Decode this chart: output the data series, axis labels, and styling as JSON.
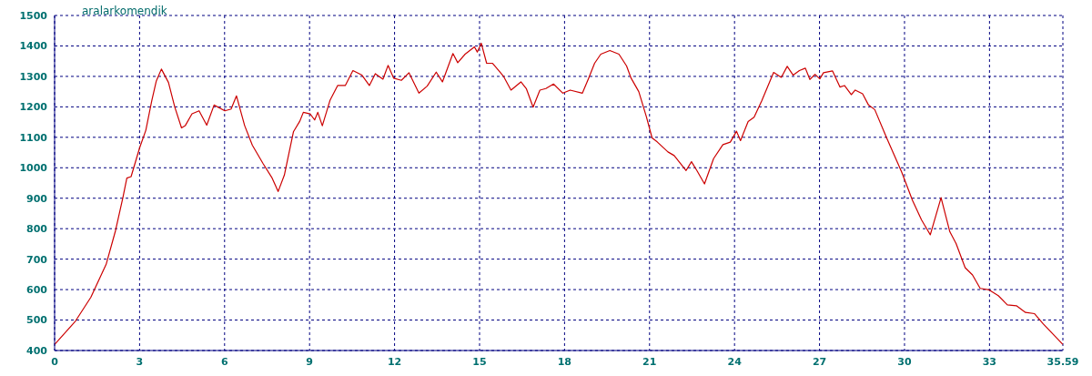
{
  "chart_data": {
    "type": "line",
    "title": "aralarkomendik",
    "x": [
      0,
      0.74,
      1.28,
      1.82,
      2.14,
      2.41,
      2.55,
      2.7,
      3.0,
      3.22,
      3.43,
      3.59,
      3.77,
      4.02,
      4.24,
      4.48,
      4.61,
      4.85,
      5.1,
      5.37,
      5.63,
      6.01,
      6.23,
      6.42,
      6.71,
      6.98,
      7.35,
      7.68,
      7.89,
      8.11,
      8.43,
      8.65,
      8.78,
      9.02,
      9.18,
      9.29,
      9.45,
      9.72,
      9.99,
      10.26,
      10.53,
      10.85,
      11.11,
      11.32,
      11.59,
      11.77,
      11.97,
      12.24,
      12.51,
      12.86,
      13.15,
      13.47,
      13.69,
      14.06,
      14.23,
      14.49,
      14.82,
      14.92,
      15.06,
      15.25,
      15.46,
      15.68,
      15.84,
      16.11,
      16.46,
      16.65,
      16.89,
      17.13,
      17.34,
      17.61,
      17.94,
      18.2,
      18.63,
      18.85,
      19.06,
      19.28,
      19.6,
      19.92,
      20.19,
      20.35,
      20.62,
      20.89,
      21.09,
      21.27,
      21.65,
      21.87,
      22.29,
      22.48,
      22.67,
      22.94,
      23.26,
      23.59,
      23.85,
      24.07,
      24.21,
      24.48,
      24.69,
      24.96,
      25.38,
      25.65,
      25.86,
      26.07,
      26.29,
      26.5,
      26.66,
      26.84,
      27.01,
      27.14,
      27.46,
      27.72,
      27.88,
      28.12,
      28.26,
      28.52,
      28.73,
      28.95,
      29.37,
      29.9,
      30.28,
      30.6,
      30.91,
      31.29,
      31.6,
      31.82,
      32.14,
      32.4,
      32.67,
      32.99,
      33.31,
      33.63,
      33.95,
      34.27,
      34.59,
      34.9,
      35.59
    ],
    "series": [
      {
        "color": "#cc0000",
        "values": [
          420,
          497,
          575,
          683,
          790,
          902,
          966,
          971,
          1065,
          1123,
          1220,
          1285,
          1324,
          1280,
          1200,
          1131,
          1138,
          1177,
          1187,
          1140,
          1206,
          1187,
          1193,
          1236,
          1138,
          1074,
          1015,
          966,
          922,
          976,
          1118,
          1152,
          1182,
          1177,
          1157,
          1182,
          1138,
          1221,
          1270,
          1270,
          1319,
          1304,
          1270,
          1309,
          1291,
          1336,
          1294,
          1287,
          1312,
          1245,
          1268,
          1314,
          1282,
          1375,
          1345,
          1373,
          1397,
          1380,
          1409,
          1343,
          1343,
          1319,
          1301,
          1255,
          1282,
          1260,
          1199,
          1255,
          1260,
          1275,
          1245,
          1255,
          1245,
          1294,
          1343,
          1373,
          1385,
          1373,
          1334,
          1294,
          1250,
          1167,
          1098,
          1085,
          1052,
          1040,
          991,
          1020,
          991,
          947,
          1030,
          1076,
          1084,
          1120,
          1089,
          1152,
          1166,
          1220,
          1313,
          1297,
          1333,
          1304,
          1319,
          1327,
          1290,
          1307,
          1292,
          1312,
          1318,
          1265,
          1270,
          1240,
          1255,
          1243,
          1206,
          1191,
          1098,
          986,
          893,
          829,
          780,
          902,
          790,
          751,
          672,
          648,
          604,
          599,
          580,
          550,
          547,
          525,
          521,
          487,
          420
        ]
      }
    ],
    "xlim": [
      0,
      35.59
    ],
    "xticks": [
      0,
      3,
      6,
      9,
      12,
      15,
      18,
      21,
      24,
      27,
      30,
      33,
      35.59
    ],
    "ylim": [
      400,
      1500
    ],
    "yticks": [
      400,
      500,
      600,
      700,
      800,
      900,
      1000,
      1100,
      1200,
      1300,
      1400,
      1500
    ],
    "grid": true,
    "line_style": "solid",
    "marker": "none"
  }
}
